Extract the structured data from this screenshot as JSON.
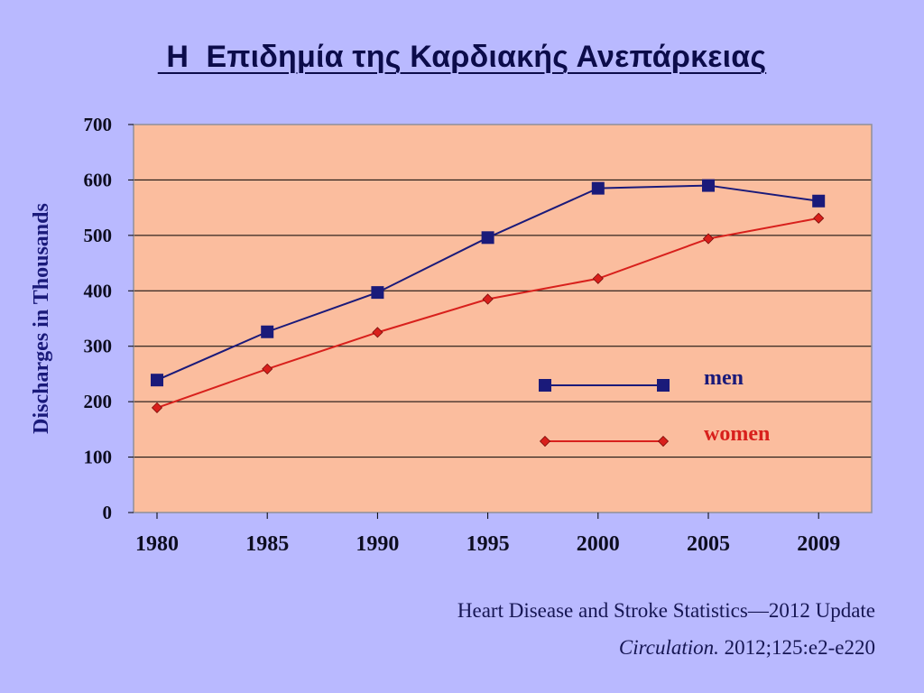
{
  "title": " Η  Επιδημία της Καρδιακής Ανεπάρκειας",
  "source": {
    "line1": "Heart Disease and Stroke Statistics—2012 Update",
    "journal": "Circulation.",
    "citation": " 2012;125:e2-e220"
  },
  "colors": {
    "background": "#b9b9ff",
    "plot_area": "#fbbd9e",
    "men": "#1a1a7a",
    "women": "#d8201c",
    "axis_text": "#0d0d20"
  },
  "chart_data": {
    "type": "line",
    "title": "",
    "xlabel": "",
    "ylabel": "Discharges in Thousands",
    "categories": [
      "1980",
      "1985",
      "1990",
      "1995",
      "2000",
      "2005",
      "2009"
    ],
    "ylim": [
      0,
      700
    ],
    "yticks": [
      0,
      100,
      200,
      300,
      400,
      500,
      600,
      700
    ],
    "grid": "horizontal",
    "legend_position": "inside-lower-right",
    "series": [
      {
        "name": "men",
        "marker": "square",
        "color": "#1a1a7a",
        "values": [
          239,
          326,
          397,
          496,
          585,
          590,
          562
        ]
      },
      {
        "name": "women",
        "marker": "diamond",
        "color": "#d8201c",
        "values": [
          189,
          259,
          325,
          385,
          422,
          494,
          531
        ]
      }
    ]
  }
}
